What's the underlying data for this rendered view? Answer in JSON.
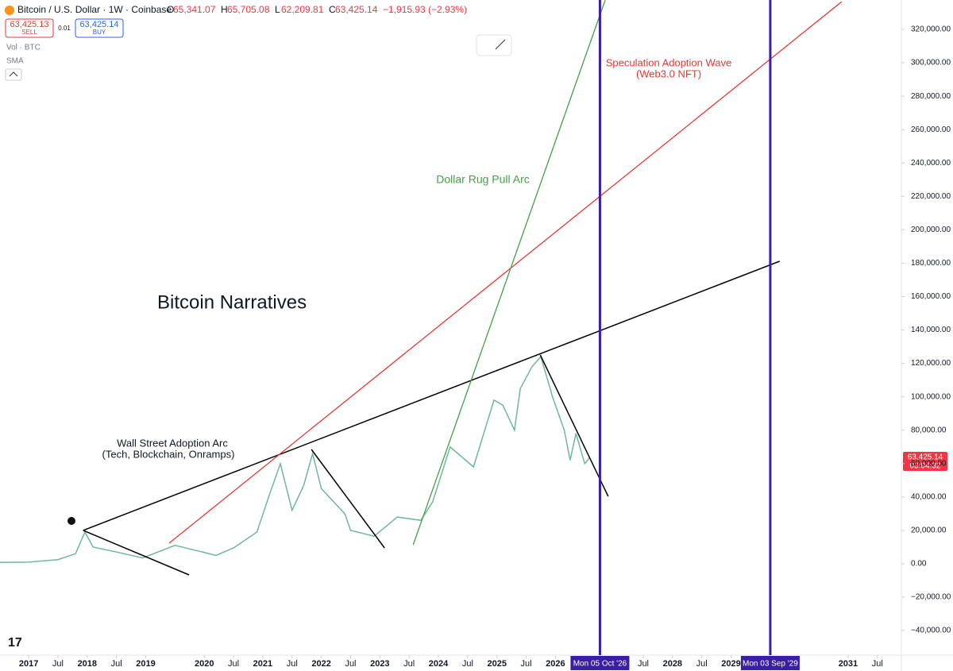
{
  "header": {
    "symbol": "Bitcoin / U.S. Dollar · 1W · Coinbase",
    "ohlc": [
      {
        "k": "O",
        "v": "65,341.07"
      },
      {
        "k": "H",
        "v": "65,705.08"
      },
      {
        "k": "L",
        "v": "62,209.81"
      },
      {
        "k": "C",
        "v": "63,425.14"
      }
    ],
    "change": "−1,915.93 (−2.93%)",
    "sell_price": "63,425.13",
    "sell": "SELL",
    "spread": "0.01",
    "buy_price": "63,425.14",
    "buy": "BUY",
    "vol": "Vol · BTC",
    "sma": "SMA"
  },
  "price_tag": {
    "price": "63,425.14",
    "countdown": "03:04:32"
  },
  "chart_data": {
    "type": "line",
    "title": "Bitcoin Narratives",
    "xlim": [
      2016.51,
      2031.91
    ],
    "ylim": [
      -54700,
      337600
    ],
    "xticks": [
      2017,
      {
        "value": 2017.5,
        "label": "Jul"
      },
      2018,
      {
        "value": 2018.5,
        "label": "Jul"
      },
      2019,
      2020,
      {
        "value": 2020.5,
        "label": "Jul"
      },
      2021,
      {
        "value": 2021.5,
        "label": "Jul"
      },
      2022,
      {
        "value": 2022.5,
        "label": "Jul"
      },
      2023,
      {
        "value": 2023.5,
        "label": "Jul"
      },
      2024,
      {
        "value": 2024.5,
        "label": "Jul"
      },
      2025,
      {
        "value": 2025.5,
        "label": "Jul"
      },
      2026,
      {
        "value": 2027.5,
        "label": "Jul"
      },
      2028,
      {
        "value": 2028.5,
        "label": "Jul"
      },
      2029,
      2031,
      {
        "value": 2031.5,
        "label": "Jul"
      }
    ],
    "yticks": [
      {
        "value": -40000,
        "label": "−40,000.00"
      },
      {
        "value": -20000,
        "label": "−20,000.00"
      },
      {
        "value": 0,
        "label": "0.00"
      },
      {
        "value": 20000,
        "label": "20,000.00"
      },
      {
        "value": 40000,
        "label": "40,000.00"
      },
      {
        "value": 60000,
        "label": "60,000.00"
      },
      {
        "value": 80000,
        "label": "80,000.00"
      },
      {
        "value": 100000,
        "label": "100,000.00"
      },
      {
        "value": 120000,
        "label": "120,000.00"
      },
      {
        "value": 140000,
        "label": "140,000.00"
      },
      {
        "value": 160000,
        "label": "160,000.00"
      },
      {
        "value": 180000,
        "label": "180,000.00"
      },
      {
        "value": 200000,
        "label": "200,000.00"
      },
      {
        "value": 220000,
        "label": "220,000.00"
      },
      {
        "value": 240000,
        "label": "240,000.00"
      },
      {
        "value": 260000,
        "label": "260,000.00"
      },
      {
        "value": 280000,
        "label": "280,000.00"
      },
      {
        "value": 300000,
        "label": "300,000.00"
      },
      {
        "value": 320000,
        "label": "320,000.00"
      }
    ],
    "series": [
      {
        "name": "BTCUSD",
        "color": "#6fb79c",
        "x": [
          2016.51,
          2017.0,
          2017.5,
          2017.8,
          2017.96,
          2018.1,
          2018.5,
          2018.95,
          2019.5,
          2019.95,
          2020.2,
          2020.5,
          2020.9,
          2021.1,
          2021.3,
          2021.5,
          2021.7,
          2021.85,
          2022.0,
          2022.4,
          2022.5,
          2022.9,
          2023.3,
          2023.7,
          2023.9,
          2024.2,
          2024.6,
          2024.95,
          2025.1,
          2025.3,
          2025.4,
          2025.6,
          2025.75,
          2025.95,
          2026.15,
          2026.25,
          2026.35,
          2026.5,
          2026.58
        ],
        "values": [
          800,
          1000,
          2500,
          6000,
          19000,
          10000,
          7000,
          3500,
          11000,
          7200,
          5000,
          9500,
          19000,
          40000,
          60000,
          32000,
          47000,
          66000,
          45000,
          30000,
          20000,
          16500,
          28000,
          26000,
          37000,
          70000,
          58000,
          98000,
          95000,
          80000,
          105000,
          118000,
          124000,
          100000,
          80000,
          62000,
          78000,
          60000,
          63425
        ]
      }
    ],
    "trend_lines": [
      {
        "color": "#000000",
        "x": [
          2017.93,
          2029.83
        ],
        "values": [
          20000,
          181160
        ]
      },
      {
        "color": "#000000",
        "x": [
          2017.93,
          2019.74
        ],
        "values": [
          20000,
          -6660
        ]
      },
      {
        "color": "#000000",
        "x": [
          2021.83,
          2023.08
        ],
        "values": [
          68470,
          9510
        ]
      },
      {
        "color": "#000000",
        "x": [
          2025.74,
          2026.9
        ],
        "values": [
          125050,
          40420
        ]
      },
      {
        "color": "#e53935",
        "x": [
          2019.4,
          2030.89
        ],
        "values": [
          12360,
          336600
        ]
      },
      {
        "color": "#43a047",
        "x": [
          2023.57,
          2026.85
        ],
        "values": [
          11410,
          337600
        ]
      }
    ],
    "vertical_lines": [
      {
        "x": 2026.76,
        "label": "Mon 05 Oct '26"
      },
      {
        "x": 2029.67,
        "label": "Mon 03 Sep '29"
      }
    ],
    "vertical_color": "#3b1fa3",
    "annotations": [
      "Wall Street Adoption Arc",
      "(Tech, Blockchain, Onramps)",
      "Dollar Rug Pull Arc",
      "Speculation Adoption Wave",
      "(Web3.0 NFT)"
    ]
  }
}
